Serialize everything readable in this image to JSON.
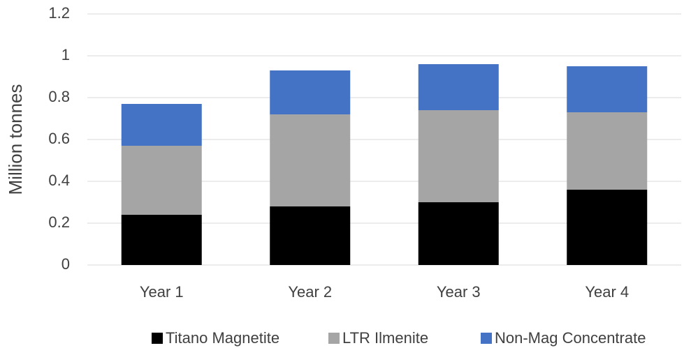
{
  "chart_data": {
    "type": "stacked_bar",
    "y_label": "Million tonnes",
    "categories": [
      "Year 1",
      "Year 2",
      "Year 3",
      "Year 4"
    ],
    "series": [
      {
        "name": "Titano Magnetite",
        "color": "#000000",
        "values": [
          0.24,
          0.28,
          0.3,
          0.36
        ]
      },
      {
        "name": "LTR Ilmenite",
        "color": "#a5a5a5",
        "values": [
          0.33,
          0.44,
          0.44,
          0.37
        ]
      },
      {
        "name": "Non-Mag Concentrate",
        "color": "#4472c4",
        "values": [
          0.2,
          0.21,
          0.22,
          0.22
        ]
      }
    ],
    "ylim": [
      0,
      1.2
    ],
    "yticks": [
      0,
      0.2,
      0.4,
      0.6,
      0.8,
      1,
      1.2
    ],
    "grid": true,
    "legend": "bottom"
  }
}
